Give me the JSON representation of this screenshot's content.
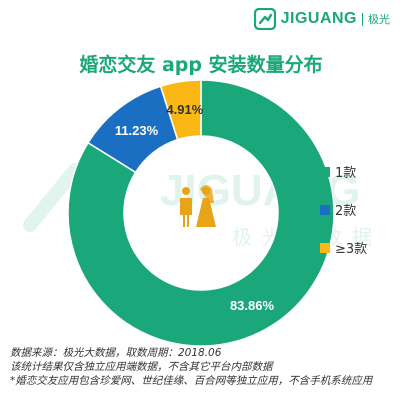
{
  "brand": {
    "name": "JIGUANG",
    "cn_name": "极光"
  },
  "watermark": {
    "text": "JIGUANG",
    "cn": "极光大数据"
  },
  "colors": {
    "green": "#1aa77a",
    "blue": "#1b6fc3",
    "yellow": "#fbb713",
    "text": "#333333"
  },
  "chart_data": {
    "type": "pie",
    "title": "婚恋交友 app 安装数量分布",
    "categories": [
      "1款",
      "2款",
      "≥3款"
    ],
    "values": [
      83.86,
      11.23,
      4.91
    ],
    "value_labels": [
      "83.86%",
      "11.23%",
      "4.91%"
    ],
    "colors": [
      "#1aa77a",
      "#1b6fc3",
      "#fbb713"
    ],
    "legend_position": "right",
    "center_icon": "wedding-couple-icon"
  },
  "source": {
    "line1": "数据来源：极光大数据，取数周期：2018.06",
    "line2": "该统计结果仅含独立应用端数据，不含其它平台内部数据",
    "line3": "*婚恋交友应用包含珍爱网、世纪佳缘、百合网等独立应用，不含手机系统应用"
  }
}
